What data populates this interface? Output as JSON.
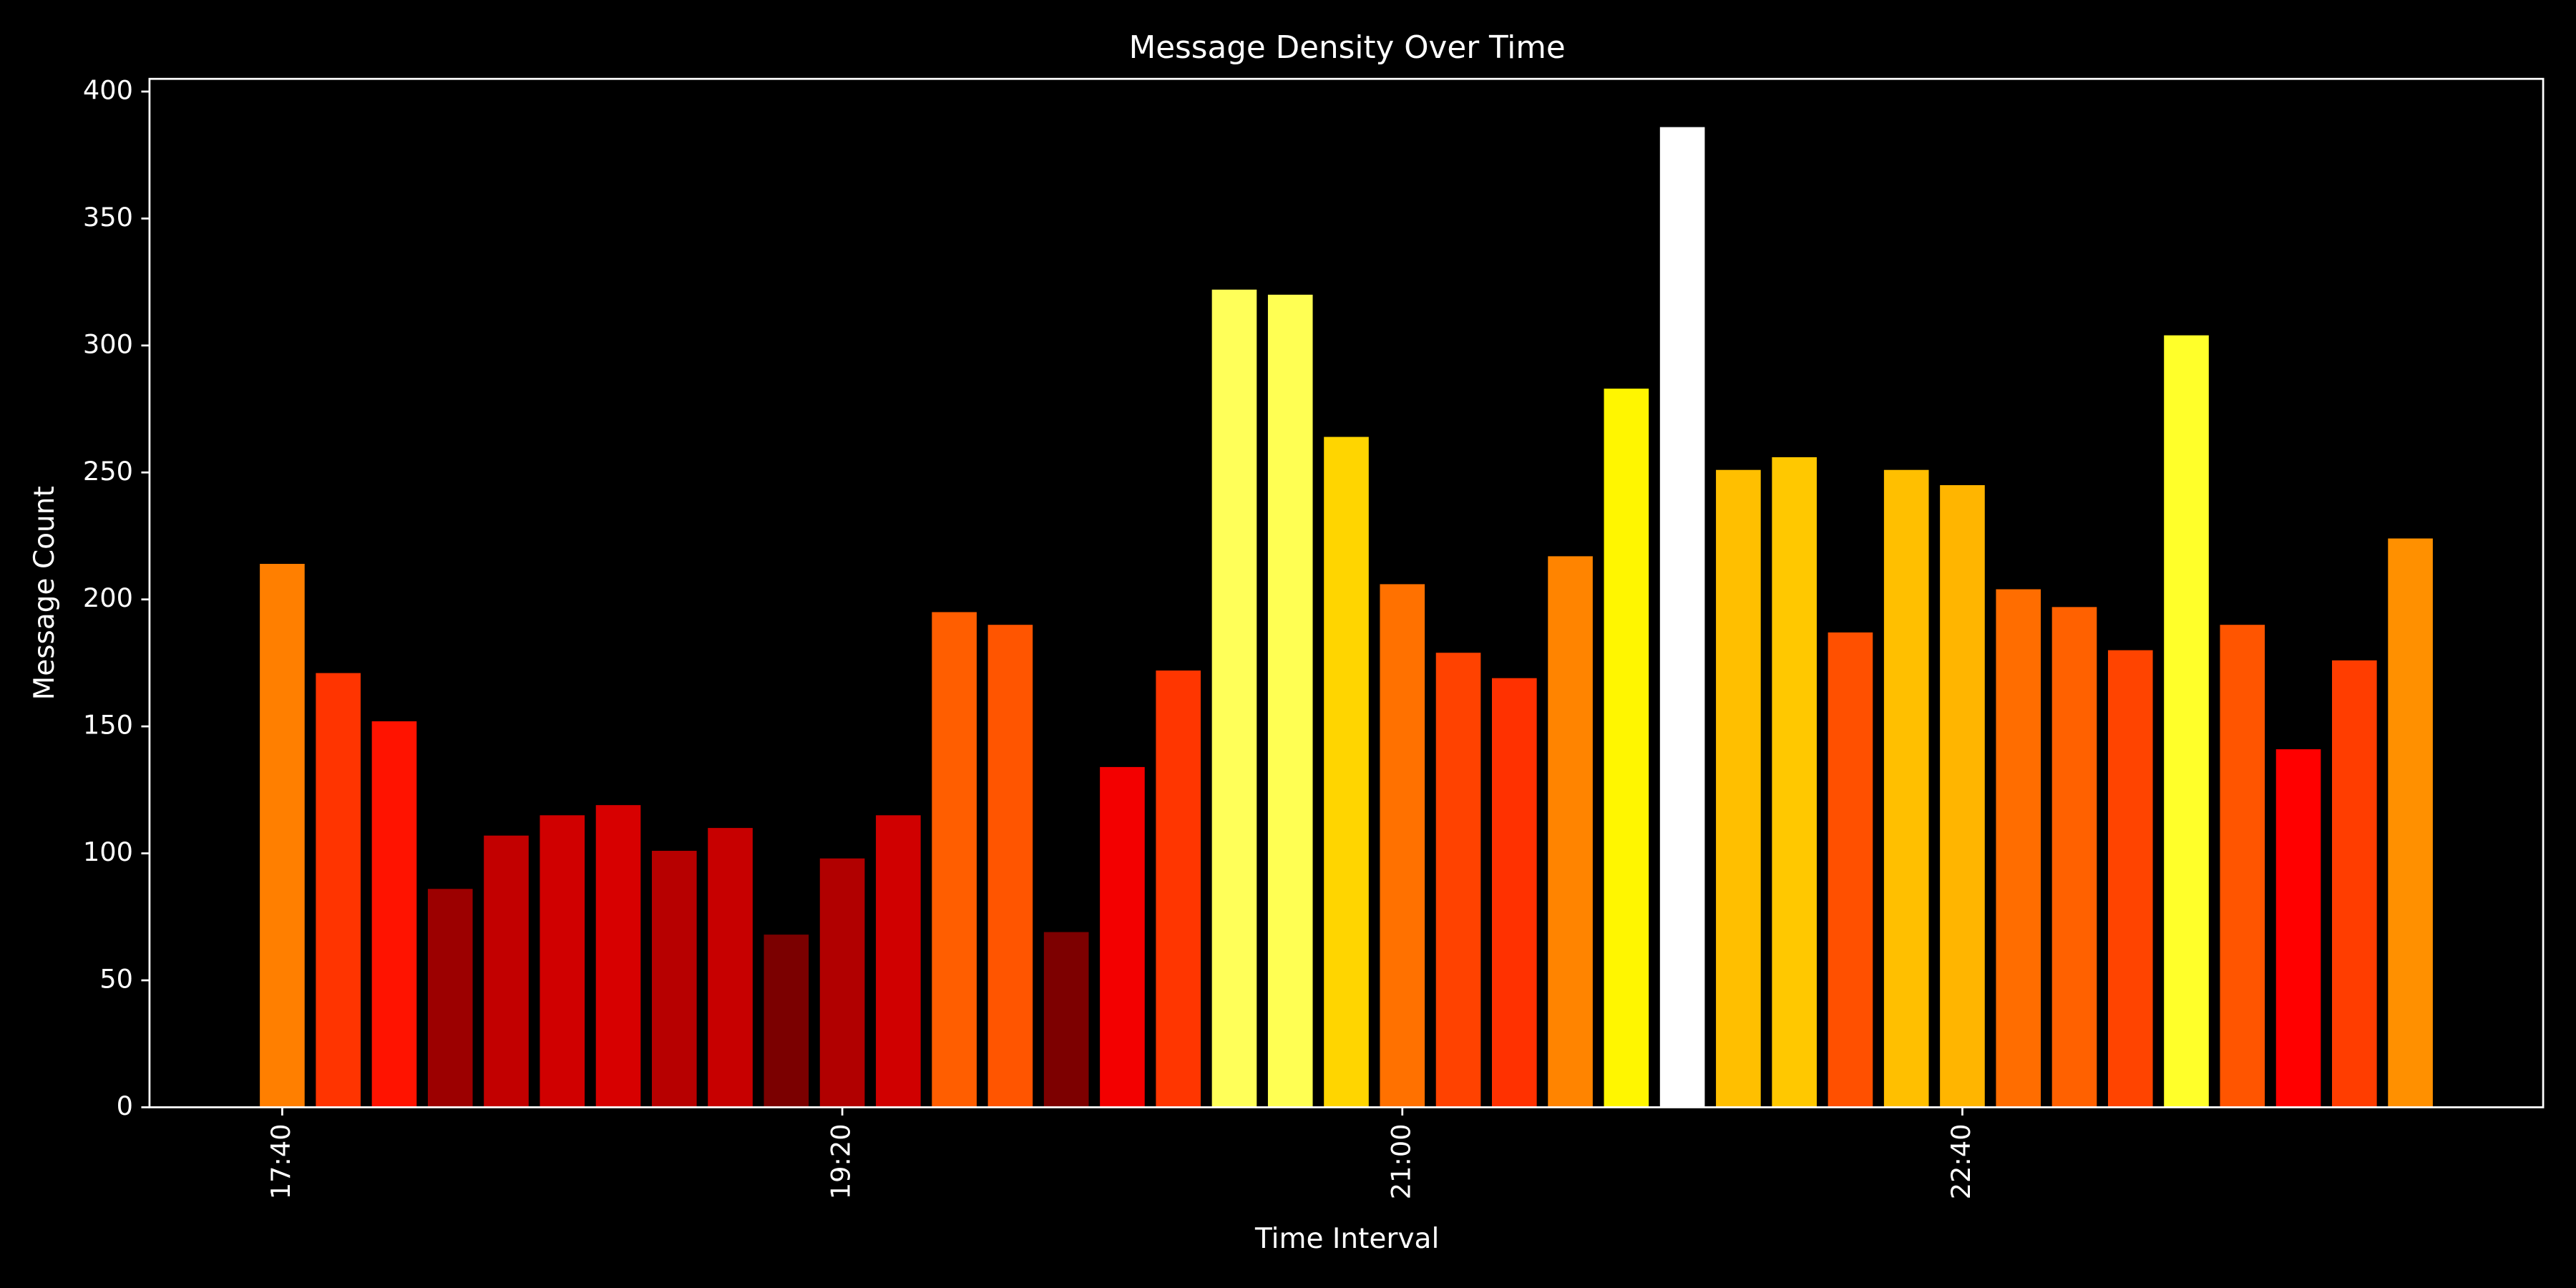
{
  "chart_data": {
    "type": "bar",
    "title": "Message Density Over Time",
    "x_label": "Time Interval",
    "y_label": "Message Count",
    "categories": [
      "17:40",
      null,
      null,
      null,
      null,
      null,
      null,
      null,
      null,
      null,
      "19:20",
      null,
      null,
      null,
      null,
      null,
      null,
      null,
      null,
      null,
      "21:00",
      null,
      null,
      null,
      null,
      null,
      null,
      null,
      null,
      null,
      "22:40",
      null,
      null,
      null,
      null,
      null,
      null,
      null,
      null
    ],
    "values": [
      214,
      171,
      152,
      86,
      107,
      115,
      119,
      101,
      110,
      68,
      98,
      115,
      195,
      190,
      69,
      134,
      172,
      322,
      320,
      264,
      206,
      179,
      169,
      217,
      283,
      386,
      251,
      256,
      187,
      251,
      245,
      204,
      197,
      180,
      304,
      190,
      141,
      176,
      224
    ],
    "colormap": "hot",
    "ylim": [
      0,
      405
    ],
    "yticks": [
      0,
      50,
      100,
      150,
      200,
      250,
      300,
      350,
      400
    ],
    "grid": false
  }
}
